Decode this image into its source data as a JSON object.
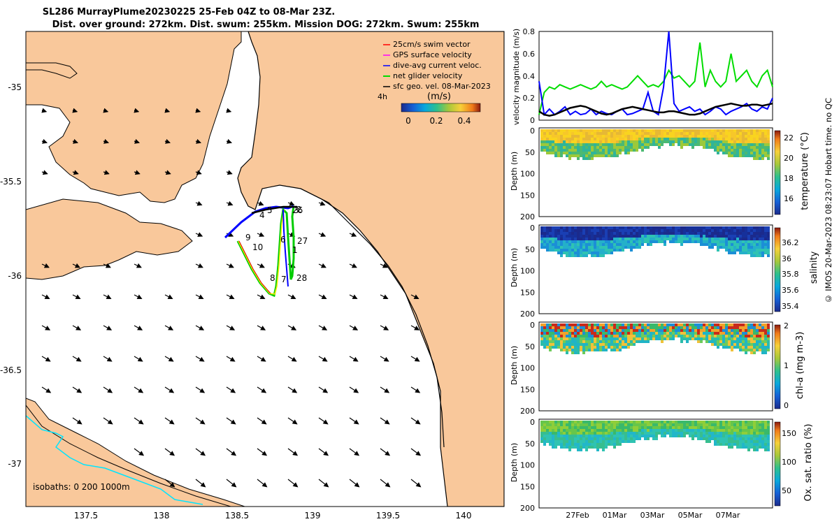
{
  "header": {
    "title_line1": "SL286 MurrayPlume20230225 25-Feb 04Z to 08-Mar 23Z.",
    "title_line2": "Dist. over ground: 272km. Dist. swum: 255km. Mission DOG: 272km. Swum: 255km"
  },
  "map": {
    "x_ticks": [
      "137.5",
      "138",
      "138.5",
      "139",
      "139.5",
      "140"
    ],
    "y_ticks": [
      "-35",
      "-35.5",
      "-36",
      "-36.5",
      "-37"
    ],
    "legend": [
      {
        "label": "25cm/s swim vector",
        "color": "#ff0000"
      },
      {
        "label": "GPS surface velocity",
        "color": "#ff00ff"
      },
      {
        "label": "dive-avg current veloc.",
        "color": "#0000ff"
      },
      {
        "label": "net glider velocity",
        "color": "#00dd00"
      },
      {
        "label": "sfc geo. vel. 08-Mar-2023",
        "color": "#000000"
      }
    ],
    "colorbar": {
      "time_label": "4h",
      "unit": "(m/s)",
      "ticks": [
        "0",
        "0.2",
        "0.4"
      ]
    },
    "isobaths_label": "isobaths: 0   200  1000m",
    "track_labels": [
      "26",
      "5",
      "4",
      "3",
      "2",
      "9",
      "10",
      "6",
      "27",
      "1",
      "8",
      "7",
      "28"
    ],
    "colors": {
      "land": "#f9c89b",
      "sea": "#ffffff",
      "isobath1000": "#00e5ff"
    }
  },
  "chart_data": [
    {
      "type": "line",
      "ylabel": "velocity magnitude (m/s)",
      "ylim": [
        0,
        0.8
      ],
      "y_ticks": [
        "0",
        "0.2",
        "0.4",
        "0.6",
        "0.8"
      ],
      "series": [
        {
          "name": "net glider velocity",
          "color": "#00dd00",
          "values": [
            0.05,
            0.25,
            0.3,
            0.28,
            0.32,
            0.3,
            0.28,
            0.3,
            0.32,
            0.3,
            0.28,
            0.3,
            0.35,
            0.3,
            0.32,
            0.3,
            0.28,
            0.3,
            0.35,
            0.4,
            0.35,
            0.3,
            0.32,
            0.3,
            0.35,
            0.45,
            0.38,
            0.4,
            0.35,
            0.3,
            0.35,
            0.7,
            0.3,
            0.45,
            0.35,
            0.3,
            0.35,
            0.6,
            0.35,
            0.4,
            0.45,
            0.35,
            0.3,
            0.4,
            0.45,
            0.3
          ]
        },
        {
          "name": "dive-avg current",
          "color": "#0000ff",
          "values": [
            0.35,
            0.05,
            0.1,
            0.05,
            0.08,
            0.12,
            0.05,
            0.08,
            0.05,
            0.06,
            0.1,
            0.05,
            0.08,
            0.06,
            0.05,
            0.08,
            0.1,
            0.05,
            0.06,
            0.08,
            0.1,
            0.25,
            0.08,
            0.05,
            0.3,
            0.8,
            0.15,
            0.08,
            0.1,
            0.12,
            0.08,
            0.1,
            0.05,
            0.08,
            0.12,
            0.1,
            0.05,
            0.08,
            0.1,
            0.12,
            0.15,
            0.1,
            0.08,
            0.12,
            0.1,
            0.2
          ]
        },
        {
          "name": "sfc geo. vel.",
          "color": "#000000",
          "values": [
            0.08,
            0.05,
            0.04,
            0.05,
            0.07,
            0.09,
            0.11,
            0.12,
            0.13,
            0.12,
            0.1,
            0.08,
            0.06,
            0.05,
            0.06,
            0.08,
            0.1,
            0.11,
            0.12,
            0.11,
            0.1,
            0.09,
            0.08,
            0.07,
            0.07,
            0.08,
            0.08,
            0.07,
            0.06,
            0.05,
            0.05,
            0.06,
            0.08,
            0.1,
            0.12,
            0.13,
            0.14,
            0.15,
            0.14,
            0.13,
            0.13,
            0.14,
            0.14,
            0.13,
            0.14,
            0.15
          ]
        }
      ]
    },
    {
      "type": "heatmap",
      "cbar_label": "temperature (°C)",
      "cbar_ticks": [
        "22",
        "20",
        "18",
        "16"
      ],
      "ylabel": "Depth (m)",
      "y_ticks": [
        "0",
        "50",
        "100",
        "150",
        "200"
      ],
      "cmap": "parula_jet"
    },
    {
      "type": "heatmap",
      "cbar_label": "salinity",
      "cbar_ticks": [
        "36.2",
        "36",
        "35.8",
        "35.6",
        "35.4"
      ],
      "ylabel": "Depth (m)",
      "y_ticks": [
        "0",
        "50",
        "100",
        "150",
        "200"
      ],
      "cmap": "parula_jet"
    },
    {
      "type": "heatmap",
      "cbar_label": "chl-a (mg m-3)",
      "cbar_ticks": [
        "2",
        "1",
        "0"
      ],
      "ylabel": "Depth (m)",
      "y_ticks": [
        "0",
        "50",
        "100",
        "150",
        "200"
      ],
      "cmap": "parula_jet"
    },
    {
      "type": "heatmap",
      "cbar_label": "Ox. sat. ratio (%)",
      "cbar_ticks": [
        "150",
        "100",
        "50"
      ],
      "ylabel": "Depth (m)",
      "y_ticks": [
        "0",
        "50",
        "100",
        "150",
        "200"
      ],
      "x_ticks": [
        "27Feb",
        "01Mar",
        "03Mar",
        "05Mar",
        "07Mar"
      ],
      "cmap": "parula_jet"
    }
  ],
  "footer": {
    "side_note": "© IMOS 20-Mar-2023 08:23:07 Hobart time. no QC"
  }
}
